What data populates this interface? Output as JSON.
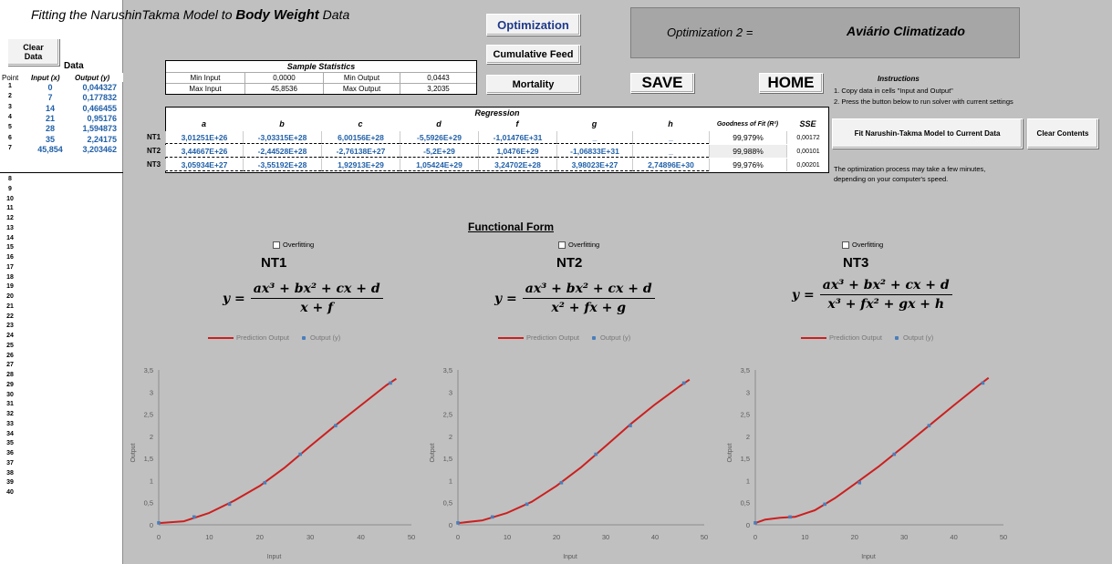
{
  "title": {
    "prefix": "Fitting the NarushinTakma Model  to",
    "emphasis": "Body Weight",
    "suffix": "Data"
  },
  "buttons": {
    "clear_data": "Clear Data",
    "optimization": "Optimization",
    "cumulative_feed": "Cumulative Feed",
    "mortality": "Mortality",
    "save": "SAVE",
    "home": "HOME",
    "fit_model": "Fit Narushin-Takma Model to Current Data",
    "clear_contents": "Clear Contents"
  },
  "data_panel": {
    "label": "Data",
    "headers": [
      "Point",
      "Input (x)",
      "Output (y)"
    ],
    "rows": [
      {
        "point": "1",
        "x": "0",
        "y": "0,044327"
      },
      {
        "point": "2",
        "x": "7",
        "y": "0,177832"
      },
      {
        "point": "3",
        "x": "14",
        "y": "0,466455"
      },
      {
        "point": "4",
        "x": "21",
        "y": "0,95176"
      },
      {
        "point": "5",
        "x": "28",
        "y": "1,594873"
      },
      {
        "point": "6",
        "x": "35",
        "y": "2,24175"
      },
      {
        "point": "7",
        "x": "45,854",
        "y": "3,203462"
      }
    ],
    "empty_rows": [
      "8",
      "9",
      "10",
      "11",
      "12",
      "13",
      "14",
      "15",
      "16",
      "17",
      "18",
      "19",
      "20",
      "21",
      "22",
      "23",
      "24",
      "25",
      "26",
      "27",
      "28",
      "29",
      "30",
      "31",
      "32",
      "33",
      "34",
      "35",
      "36",
      "37",
      "38",
      "39",
      "40"
    ]
  },
  "stats": {
    "title": "Sample Statistics",
    "min_input_label": "Min Input",
    "min_input": "0,0000",
    "min_output_label": "Min Output",
    "min_output": "0,0443",
    "max_input_label": "Max Input",
    "max_input": "45,8536",
    "max_output_label": "Max Output",
    "max_output": "3,2035"
  },
  "optimization": {
    "label": "Optimization 2 =",
    "value": "Aviário Climatizado"
  },
  "instructions": {
    "title": "Instructions",
    "line1": "1. Copy data in cells \"Input and Output\"",
    "line2": "2. Press the button below to run solver with current settings",
    "note1": "The optimization process may take a few minutes,",
    "note2": "depending on your computer's speed."
  },
  "regression": {
    "title": "Regression",
    "headers": [
      "a",
      "b",
      "c",
      "d",
      "f",
      "g",
      "h",
      "Goodness of Fit (R²)",
      "SSE"
    ],
    "rows": [
      {
        "name": "NT1",
        "values": [
          "3,01251E+26",
          "-3,03315E+28",
          "6,00156E+28",
          "-5,5926E+29",
          "-1,01476E+31",
          "_",
          "_"
        ],
        "r2": "99,979%",
        "sse": "0,00172"
      },
      {
        "name": "NT2",
        "values": [
          "3,44667E+26",
          "-2,44528E+28",
          "-2,76138E+27",
          "-5,2E+29",
          "1,0476E+29",
          "-1,06833E+31",
          "_"
        ],
        "r2": "99,988%",
        "sse": "0,00101"
      },
      {
        "name": "NT3",
        "values": [
          "3,05934E+27",
          "-3,55192E+28",
          "1,92913E+29",
          "1,05424E+29",
          "3,24702E+28",
          "3,98023E+27",
          "2,74896E+30"
        ],
        "r2": "99,976%",
        "sse": "0,00201"
      }
    ]
  },
  "functional_form": {
    "title": "Functional Form",
    "overfitting_label": "Overfitting",
    "models": [
      {
        "name": "NT1",
        "lhs": "y =",
        "num": "ax³ + bx² + cx + d",
        "den": "x + f"
      },
      {
        "name": "NT2",
        "lhs": "y =",
        "num": "ax³ + bx² + cx + d",
        "den": "x² + fx + g"
      },
      {
        "name": "NT3",
        "lhs": "y =",
        "num": "ax³ + bx² + cx + d",
        "den": "x³ + fx² + gx + h"
      }
    ]
  },
  "colors": {
    "prediction_line": "#cc1f1f",
    "output_points": "#4a7ebb",
    "sheet_bg": "#c0c0c0",
    "value_text": "#1f5fa8"
  },
  "chart_data": [
    {
      "type": "line",
      "title": "",
      "xlabel": "Input",
      "ylabel": "Output",
      "xlim": [
        0,
        50
      ],
      "ylim": [
        0,
        3.5
      ],
      "xticks": [
        "0",
        "10",
        "20",
        "30",
        "40",
        "50"
      ],
      "yticks": [
        "0",
        "0,5",
        "1",
        "1,5",
        "2",
        "2,5",
        "3",
        "3,5"
      ],
      "legend": "top",
      "series": [
        {
          "name": "Prediction Output",
          "kind": "line",
          "x": [
            0,
            5,
            10,
            15,
            20,
            25,
            30,
            35,
            40,
            45,
            47
          ],
          "y": [
            0.04,
            0.08,
            0.27,
            0.55,
            0.88,
            1.3,
            1.78,
            2.25,
            2.7,
            3.15,
            3.3
          ]
        },
        {
          "name": "Output (y)",
          "kind": "scatter",
          "x": [
            0,
            7,
            14,
            21,
            28,
            35,
            45.854
          ],
          "y": [
            0.044327,
            0.177832,
            0.466455,
            0.95176,
            1.594873,
            2.24175,
            3.203462
          ]
        }
      ]
    },
    {
      "type": "line",
      "title": "",
      "xlabel": "Input",
      "ylabel": "Output",
      "xlim": [
        0,
        50
      ],
      "ylim": [
        0,
        3.5
      ],
      "xticks": [
        "0",
        "10",
        "20",
        "30",
        "40",
        "50"
      ],
      "yticks": [
        "0",
        "0,5",
        "1",
        "1,5",
        "2",
        "2,5",
        "3",
        "3,5"
      ],
      "legend": "top",
      "series": [
        {
          "name": "Prediction Output",
          "kind": "line",
          "x": [
            0,
            5,
            10,
            15,
            20,
            25,
            30,
            35,
            40,
            45,
            47
          ],
          "y": [
            0.04,
            0.1,
            0.27,
            0.52,
            0.88,
            1.3,
            1.78,
            2.27,
            2.72,
            3.13,
            3.28
          ]
        },
        {
          "name": "Output (y)",
          "kind": "scatter",
          "x": [
            0,
            7,
            14,
            21,
            28,
            35,
            45.854
          ],
          "y": [
            0.044327,
            0.177832,
            0.466455,
            0.95176,
            1.594873,
            2.24175,
            3.203462
          ]
        }
      ]
    },
    {
      "type": "line",
      "title": "",
      "xlabel": "Input",
      "ylabel": "Output",
      "xlim": [
        0,
        50
      ],
      "ylim": [
        0,
        3.5
      ],
      "xticks": [
        "0",
        "10",
        "20",
        "30",
        "40",
        "50"
      ],
      "yticks": [
        "0",
        "0,5",
        "1",
        "1,5",
        "2",
        "2,5",
        "3",
        "3,5"
      ],
      "legend": "top",
      "series": [
        {
          "name": "Prediction Output",
          "kind": "line",
          "x": [
            0,
            2,
            5,
            8,
            12,
            16,
            20,
            25,
            30,
            35,
            40,
            45,
            47
          ],
          "y": [
            0.04,
            0.12,
            0.16,
            0.18,
            0.33,
            0.6,
            0.92,
            1.33,
            1.78,
            2.24,
            2.7,
            3.15,
            3.32
          ]
        },
        {
          "name": "Output (y)",
          "kind": "scatter",
          "x": [
            0,
            7,
            14,
            21,
            28,
            35,
            45.854
          ],
          "y": [
            0.044327,
            0.177832,
            0.466455,
            0.95176,
            1.594873,
            2.24175,
            3.203462
          ]
        }
      ]
    }
  ]
}
